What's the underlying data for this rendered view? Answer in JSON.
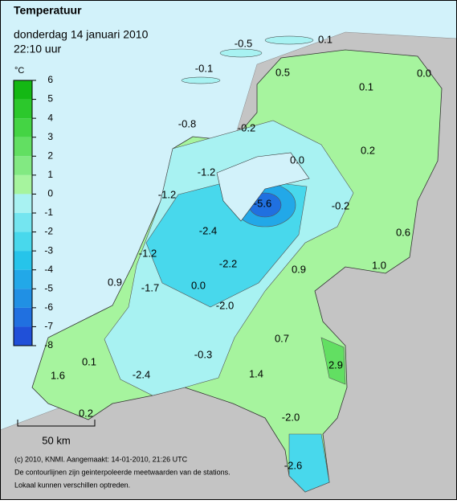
{
  "header": {
    "title": "Temperatuur",
    "date": "donderdag 14 januari 2010",
    "time": "22:10 uur"
  },
  "legend": {
    "unit": "°C",
    "ticks": [
      6,
      5,
      4,
      3,
      2,
      1,
      0,
      -1,
      -2,
      -3,
      -4,
      -5,
      -6,
      -7,
      -8
    ],
    "colors": [
      "#14b814",
      "#2cc82c",
      "#44d444",
      "#62df62",
      "#82e982",
      "#a6f49e",
      "#a8f2f2",
      "#74e5f0",
      "#48d8ec",
      "#26c4ea",
      "#22a8e8",
      "#2090e4",
      "#2070e0",
      "#2050d8"
    ]
  },
  "stations": {
    "labels": [
      "-0.5",
      "0.1",
      "-0.1",
      "0.5",
      "0.1",
      "0.0",
      "-0.8",
      "-0.2",
      "0.2",
      "0.0",
      "-1.2",
      "-1.2",
      "-5.6",
      "-0.2",
      "0.6",
      "-2.4",
      "-1.2",
      "-2.2",
      "1.0",
      "0.9",
      "0.9",
      "-1.7",
      "0.0",
      "-2.0",
      "0.7",
      "-0.3",
      "0.1",
      "2.9",
      "-2.4",
      "1.6",
      "1.4",
      "0.2",
      "-2.0",
      "-2.6"
    ]
  },
  "scale": {
    "label": "50 km"
  },
  "footer": [
    "(c) 2010, KNMI. Aangemaakt: 14-01-2010, 21:26 UTC",
    "De contourlijnen zijn geinterpoleerde meetwaarden van de stations.",
    "Lokaal kunnen verschillen optreden."
  ]
}
